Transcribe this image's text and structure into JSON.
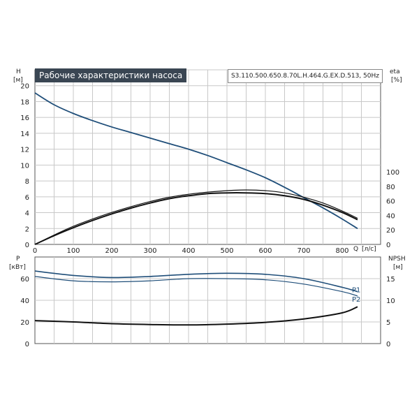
{
  "header": {
    "title": "Рабочие характеристики насоса",
    "model": "S3.110.500.650.8.70L.H.464.G.EX.D.513, 50Hz"
  },
  "colors": {
    "h_curve": "#1f4e79",
    "eta_curve": "#111111",
    "p_curve": "#1f4e79",
    "npsh_curve": "#111111",
    "grid": "#c8c8c8",
    "title_bg": "#3a4653"
  },
  "chart_data": [
    {
      "type": "line",
      "panel": "top",
      "ylabel_left": "H",
      "yunit_left": "[м]",
      "ylabel_right": "eta",
      "yunit_right": "[%]",
      "xlabel": "Q",
      "xunit": "[л/с]",
      "xlim": [
        0,
        900
      ],
      "ylim_left": [
        0,
        22
      ],
      "ylim_right": [
        0,
        100
      ],
      "x_ticks": [
        0,
        100,
        200,
        300,
        400,
        500,
        600,
        700,
        800
      ],
      "y_ticks_left": [
        0,
        2,
        4,
        6,
        8,
        10,
        12,
        14,
        16,
        18,
        20
      ],
      "y_ticks_right": [
        0,
        20,
        40,
        60,
        80,
        100
      ],
      "grid": true,
      "series": [
        {
          "axis": "left",
          "x": [
            0,
            50,
            100,
            150,
            200,
            250,
            300,
            350,
            400,
            450,
            500,
            550,
            600,
            650,
            700,
            750,
            800,
            840
          ],
          "values": [
            19.1,
            17.6,
            16.5,
            15.6,
            14.8,
            14.1,
            13.4,
            12.7,
            12.0,
            11.2,
            10.3,
            9.4,
            8.4,
            7.2,
            5.9,
            4.6,
            3.2,
            2.0
          ]
        },
        {
          "axis": "right",
          "x": [
            0,
            50,
            100,
            150,
            200,
            250,
            300,
            350,
            400,
            450,
            500,
            550,
            600,
            650,
            700,
            750,
            800,
            840
          ],
          "values": [
            0,
            12,
            23,
            33,
            42,
            50,
            57,
            63,
            67,
            70,
            71,
            71,
            70,
            67,
            62,
            54,
            44,
            34
          ]
        },
        {
          "axis": "right",
          "x": [
            0,
            50,
            100,
            150,
            200,
            250,
            300,
            350,
            400,
            450,
            500,
            550,
            600,
            650,
            700,
            750,
            800,
            840
          ],
          "values": [
            0,
            13,
            25,
            35,
            44,
            52,
            59,
            65,
            69,
            72,
            74,
            75,
            74,
            71,
            65,
            57,
            46,
            36
          ]
        }
      ]
    },
    {
      "type": "line",
      "panel": "bottom",
      "ylabel_left": "P",
      "yunit_left": "[кВт]",
      "ylabel_right": "NPSH",
      "yunit_right": "[м]",
      "xlim": [
        0,
        900
      ],
      "ylim_left": [
        0,
        80
      ],
      "ylim_right": [
        0,
        20
      ],
      "y_ticks_left": [
        0,
        20,
        40,
        60
      ],
      "y_ticks_right": [
        0,
        5,
        10,
        15
      ],
      "grid": true,
      "series": [
        {
          "name": "P1",
          "axis": "left",
          "x": [
            0,
            100,
            200,
            300,
            400,
            500,
            600,
            700,
            800,
            840
          ],
          "values": [
            67,
            63,
            61,
            62,
            64,
            65,
            64,
            60,
            52,
            48
          ]
        },
        {
          "name": "P2",
          "axis": "left",
          "x": [
            0,
            100,
            200,
            300,
            400,
            500,
            600,
            700,
            800,
            840
          ],
          "values": [
            62,
            58,
            57,
            58,
            60,
            60,
            59,
            55,
            48,
            44
          ]
        },
        {
          "axis": "right",
          "x": [
            0,
            100,
            200,
            300,
            400,
            500,
            600,
            700,
            800,
            840
          ],
          "values": [
            5.3,
            5.0,
            4.6,
            4.4,
            4.3,
            4.5,
            4.9,
            5.7,
            7.1,
            8.5
          ]
        }
      ]
    }
  ]
}
